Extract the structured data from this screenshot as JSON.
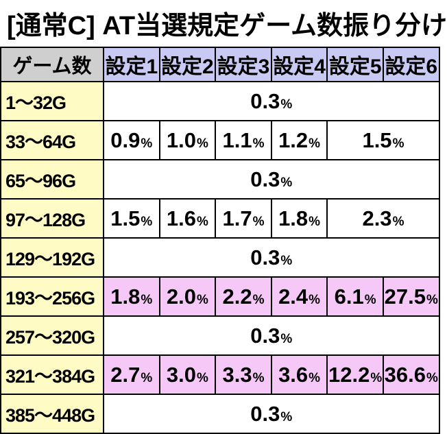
{
  "title": "[通常C] AT当選規定ゲーム数振り分け",
  "header": {
    "corner": "ゲーム数",
    "settings": [
      "設定1",
      "設定2",
      "設定3",
      "設定4",
      "設定5",
      "設定6"
    ]
  },
  "pct_unit": "%",
  "colors": {
    "header_bg": "#c9caf4",
    "corner_bg": "#cfcfcf",
    "label_bg": "#fefbc4",
    "highlight_bg": "#f6c8f8"
  },
  "rows": [
    {
      "label": "1～32G",
      "type": "merged",
      "value": "0.3"
    },
    {
      "label": "33～64G",
      "type": "split",
      "values": [
        "0.9",
        "1.0",
        "1.1",
        "1.2"
      ],
      "merged56": "1.5"
    },
    {
      "label": "65～96G",
      "type": "merged",
      "value": "0.3"
    },
    {
      "label": "97～128G",
      "type": "split",
      "values": [
        "1.5",
        "1.6",
        "1.7",
        "1.8"
      ],
      "merged56": "2.3"
    },
    {
      "label": "129～192G",
      "type": "merged",
      "value": "0.3"
    },
    {
      "label": "193～256G",
      "type": "full",
      "highlight": true,
      "values": [
        "1.8",
        "2.0",
        "2.2",
        "2.4",
        "6.1",
        "27.5"
      ]
    },
    {
      "label": "257～320G",
      "type": "merged",
      "value": "0.3"
    },
    {
      "label": "321～384G",
      "type": "full",
      "highlight": true,
      "values": [
        "2.7",
        "3.0",
        "3.3",
        "3.6",
        "12.2",
        "36.6"
      ]
    },
    {
      "label": "385～448G",
      "type": "merged",
      "value": "0.3"
    }
  ]
}
